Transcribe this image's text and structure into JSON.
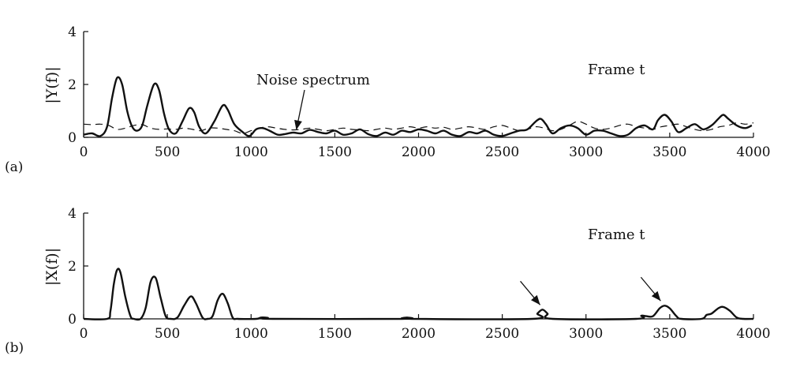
{
  "chart_data": [
    {
      "id": "a",
      "type": "line",
      "panel_label": "(a)",
      "ylabel": "|Y(f)|",
      "frame_label": "Frame t",
      "annotation": "Noise spectrum",
      "xlim": [
        0,
        4000
      ],
      "ylim": [
        0,
        4
      ],
      "x_ticks": [
        "0",
        "500",
        "1000",
        "1500",
        "2000",
        "2500",
        "3000",
        "3500",
        "4000"
      ],
      "y_ticks": [
        "0",
        "2",
        "4"
      ],
      "series": [
        {
          "style": "solid",
          "points": [
            [
              0,
              0.1
            ],
            [
              50,
              0.15
            ],
            [
              100,
              0.05
            ],
            [
              140,
              0.4
            ],
            [
              170,
              1.5
            ],
            [
              200,
              2.25
            ],
            [
              230,
              2.0
            ],
            [
              260,
              1.0
            ],
            [
              290,
              0.4
            ],
            [
              320,
              0.25
            ],
            [
              350,
              0.45
            ],
            [
              380,
              1.2
            ],
            [
              420,
              2.0
            ],
            [
              450,
              1.8
            ],
            [
              480,
              0.9
            ],
            [
              510,
              0.3
            ],
            [
              550,
              0.15
            ],
            [
              590,
              0.6
            ],
            [
              630,
              1.1
            ],
            [
              660,
              0.95
            ],
            [
              690,
              0.4
            ],
            [
              730,
              0.15
            ],
            [
              780,
              0.6
            ],
            [
              830,
              1.2
            ],
            [
              860,
              1.05
            ],
            [
              900,
              0.5
            ],
            [
              950,
              0.2
            ],
            [
              990,
              0.05
            ],
            [
              1030,
              0.3
            ],
            [
              1070,
              0.35
            ],
            [
              1110,
              0.25
            ],
            [
              1160,
              0.1
            ],
            [
              1200,
              0.12
            ],
            [
              1250,
              0.18
            ],
            [
              1300,
              0.15
            ],
            [
              1350,
              0.28
            ],
            [
              1400,
              0.2
            ],
            [
              1450,
              0.15
            ],
            [
              1500,
              0.25
            ],
            [
              1550,
              0.1
            ],
            [
              1600,
              0.15
            ],
            [
              1650,
              0.3
            ],
            [
              1700,
              0.12
            ],
            [
              1750,
              0.05
            ],
            [
              1800,
              0.18
            ],
            [
              1850,
              0.1
            ],
            [
              1900,
              0.25
            ],
            [
              1950,
              0.2
            ],
            [
              2000,
              0.3
            ],
            [
              2050,
              0.25
            ],
            [
              2100,
              0.15
            ],
            [
              2150,
              0.25
            ],
            [
              2200,
              0.1
            ],
            [
              2250,
              0.05
            ],
            [
              2300,
              0.2
            ],
            [
              2350,
              0.15
            ],
            [
              2400,
              0.25
            ],
            [
              2450,
              0.1
            ],
            [
              2500,
              0.05
            ],
            [
              2550,
              0.15
            ],
            [
              2600,
              0.25
            ],
            [
              2650,
              0.3
            ],
            [
              2700,
              0.6
            ],
            [
              2730,
              0.7
            ],
            [
              2760,
              0.5
            ],
            [
              2800,
              0.15
            ],
            [
              2850,
              0.35
            ],
            [
              2900,
              0.45
            ],
            [
              2950,
              0.35
            ],
            [
              3000,
              0.1
            ],
            [
              3050,
              0.25
            ],
            [
              3100,
              0.25
            ],
            [
              3150,
              0.15
            ],
            [
              3200,
              0.05
            ],
            [
              3250,
              0.1
            ],
            [
              3300,
              0.35
            ],
            [
              3350,
              0.45
            ],
            [
              3400,
              0.3
            ],
            [
              3430,
              0.65
            ],
            [
              3470,
              0.85
            ],
            [
              3510,
              0.6
            ],
            [
              3550,
              0.2
            ],
            [
              3600,
              0.35
            ],
            [
              3650,
              0.5
            ],
            [
              3700,
              0.3
            ],
            [
              3750,
              0.45
            ],
            [
              3790,
              0.7
            ],
            [
              3820,
              0.85
            ],
            [
              3850,
              0.7
            ],
            [
              3900,
              0.45
            ],
            [
              3950,
              0.35
            ],
            [
              3990,
              0.45
            ]
          ]
        },
        {
          "style": "dashed",
          "points": [
            [
              0,
              0.5
            ],
            [
              50,
              0.48
            ],
            [
              100,
              0.5
            ],
            [
              150,
              0.45
            ],
            [
              200,
              0.3
            ],
            [
              250,
              0.35
            ],
            [
              300,
              0.45
            ],
            [
              350,
              0.48
            ],
            [
              400,
              0.35
            ],
            [
              450,
              0.3
            ],
            [
              500,
              0.32
            ],
            [
              550,
              0.3
            ],
            [
              600,
              0.35
            ],
            [
              650,
              0.3
            ],
            [
              700,
              0.25
            ],
            [
              750,
              0.35
            ],
            [
              800,
              0.35
            ],
            [
              850,
              0.3
            ],
            [
              900,
              0.25
            ],
            [
              950,
              0.15
            ],
            [
              1000,
              0.25
            ],
            [
              1050,
              0.35
            ],
            [
              1100,
              0.4
            ],
            [
              1150,
              0.35
            ],
            [
              1200,
              0.3
            ],
            [
              1250,
              0.28
            ],
            [
              1300,
              0.3
            ],
            [
              1350,
              0.35
            ],
            [
              1400,
              0.3
            ],
            [
              1450,
              0.25
            ],
            [
              1500,
              0.3
            ],
            [
              1550,
              0.35
            ],
            [
              1600,
              0.3
            ],
            [
              1650,
              0.28
            ],
            [
              1700,
              0.25
            ],
            [
              1750,
              0.3
            ],
            [
              1800,
              0.35
            ],
            [
              1850,
              0.3
            ],
            [
              1900,
              0.35
            ],
            [
              1950,
              0.4
            ],
            [
              2000,
              0.35
            ],
            [
              2050,
              0.4
            ],
            [
              2100,
              0.35
            ],
            [
              2150,
              0.38
            ],
            [
              2200,
              0.3
            ],
            [
              2250,
              0.35
            ],
            [
              2300,
              0.4
            ],
            [
              2350,
              0.35
            ],
            [
              2400,
              0.3
            ],
            [
              2450,
              0.4
            ],
            [
              2500,
              0.45
            ],
            [
              2550,
              0.35
            ],
            [
              2600,
              0.25
            ],
            [
              2650,
              0.3
            ],
            [
              2700,
              0.4
            ],
            [
              2750,
              0.35
            ],
            [
              2800,
              0.25
            ],
            [
              2850,
              0.3
            ],
            [
              2900,
              0.45
            ],
            [
              2950,
              0.6
            ],
            [
              3000,
              0.5
            ],
            [
              3050,
              0.35
            ],
            [
              3100,
              0.3
            ],
            [
              3150,
              0.35
            ],
            [
              3200,
              0.45
            ],
            [
              3250,
              0.5
            ],
            [
              3300,
              0.4
            ],
            [
              3350,
              0.35
            ],
            [
              3400,
              0.3
            ],
            [
              3450,
              0.4
            ],
            [
              3500,
              0.45
            ],
            [
              3550,
              0.5
            ],
            [
              3600,
              0.4
            ],
            [
              3650,
              0.3
            ],
            [
              3700,
              0.25
            ],
            [
              3750,
              0.3
            ],
            [
              3800,
              0.4
            ],
            [
              3850,
              0.45
            ],
            [
              3900,
              0.55
            ],
            [
              3950,
              0.5
            ],
            [
              4000,
              0.55
            ]
          ]
        }
      ]
    },
    {
      "id": "b",
      "type": "line",
      "panel_label": "(b)",
      "ylabel": "|X(f)|",
      "frame_label": "Frame t",
      "xlim": [
        0,
        4000
      ],
      "ylim": [
        0,
        4
      ],
      "x_ticks": [
        "0",
        "500",
        "1000",
        "1500",
        "2000",
        "2500",
        "3000",
        "3500",
        "4000"
      ],
      "y_ticks": [
        "0",
        "2",
        "4"
      ],
      "arrows_at": [
        [
          2740,
          0.35
        ],
        [
          3460,
          0.5
        ]
      ],
      "series": [
        {
          "style": "solid",
          "points": [
            [
              0,
              0
            ],
            [
              140,
              0
            ],
            [
              160,
              0.3
            ],
            [
              180,
              1.3
            ],
            [
              200,
              1.85
            ],
            [
              220,
              1.75
            ],
            [
              250,
              0.8
            ],
            [
              280,
              0.1
            ],
            [
              300,
              0
            ],
            [
              340,
              0
            ],
            [
              370,
              0.4
            ],
            [
              400,
              1.4
            ],
            [
              430,
              1.55
            ],
            [
              460,
              0.8
            ],
            [
              490,
              0.1
            ],
            [
              520,
              0
            ],
            [
              560,
              0.05
            ],
            [
              600,
              0.5
            ],
            [
              640,
              0.85
            ],
            [
              670,
              0.6
            ],
            [
              710,
              0.05
            ],
            [
              740,
              0
            ],
            [
              770,
              0.1
            ],
            [
              800,
              0.7
            ],
            [
              830,
              0.95
            ],
            [
              860,
              0.6
            ],
            [
              890,
              0.05
            ],
            [
              920,
              0
            ],
            [
              1030,
              0
            ],
            [
              1060,
              0.05
            ],
            [
              1100,
              0.04
            ],
            [
              1130,
              0
            ],
            [
              1900,
              0
            ],
            [
              1930,
              0.05
            ],
            [
              1960,
              0
            ],
            [
              2680,
              0
            ],
            [
              2710,
              0.2
            ],
            [
              2740,
              0.35
            ],
            [
              2770,
              0.2
            ],
            [
              2800,
              0
            ],
            [
              3300,
              0
            ],
            [
              3330,
              0.12
            ],
            [
              3360,
              0.1
            ],
            [
              3400,
              0.1
            ],
            [
              3440,
              0.4
            ],
            [
              3470,
              0.5
            ],
            [
              3500,
              0.4
            ],
            [
              3540,
              0.1
            ],
            [
              3570,
              0
            ],
            [
              3690,
              0
            ],
            [
              3720,
              0.15
            ],
            [
              3750,
              0.2
            ],
            [
              3790,
              0.4
            ],
            [
              3820,
              0.45
            ],
            [
              3860,
              0.3
            ],
            [
              3900,
              0.05
            ],
            [
              3940,
              0
            ],
            [
              4000,
              0
            ]
          ]
        }
      ]
    }
  ]
}
